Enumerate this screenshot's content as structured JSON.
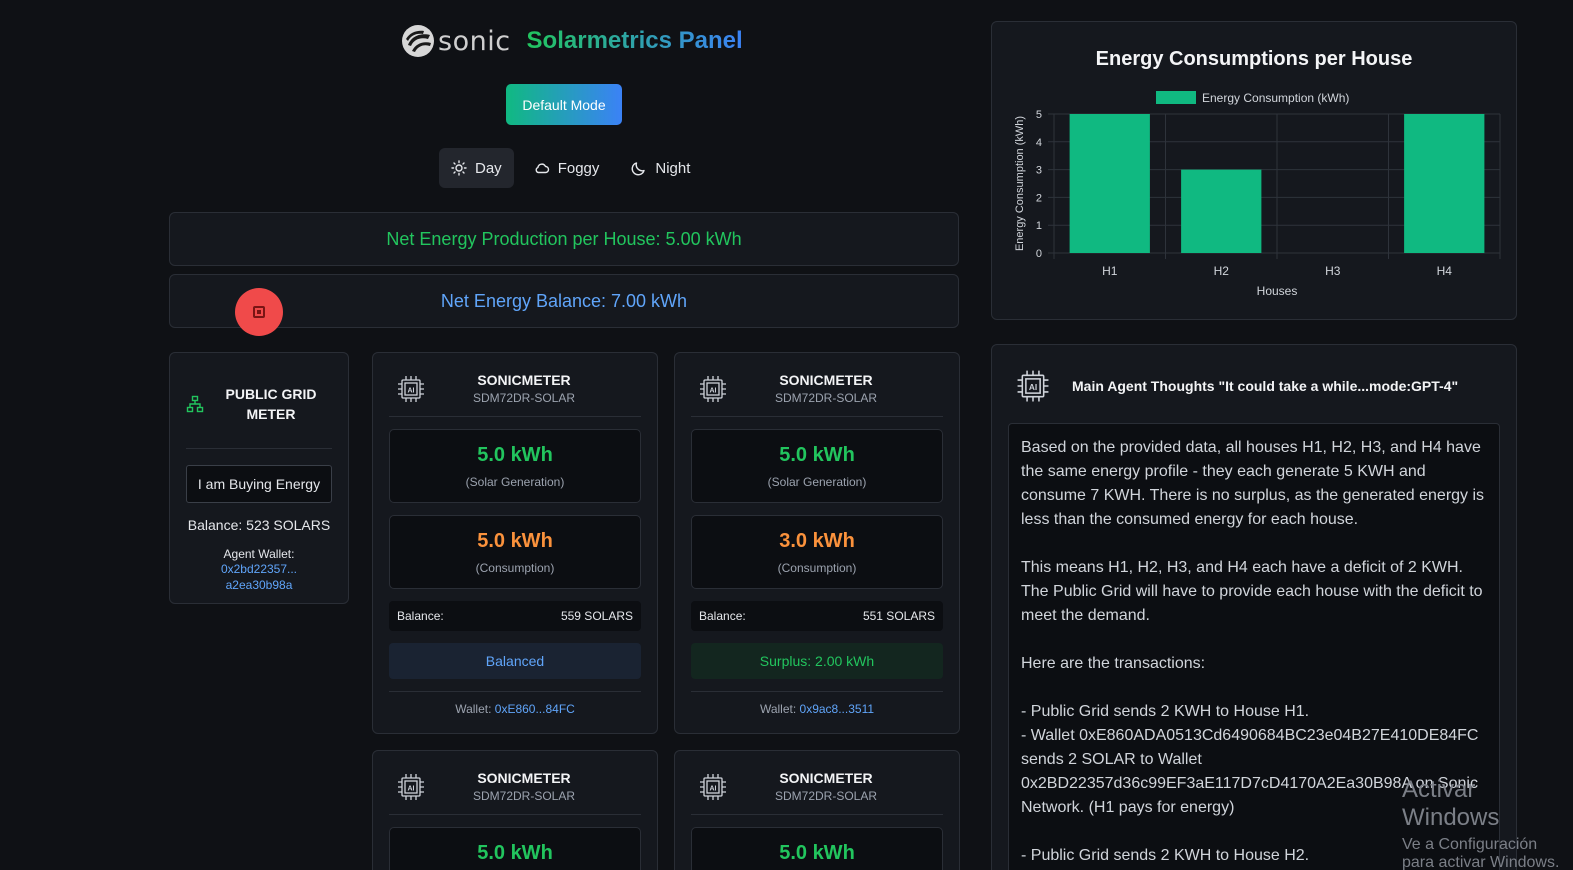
{
  "header": {
    "logo_text": "sonic",
    "title": "Solarmetrics Panel"
  },
  "mode_button": "Default Mode",
  "weather": [
    {
      "label": "Day",
      "icon": "sun-icon",
      "active": true
    },
    {
      "label": "Foggy",
      "icon": "cloud-icon",
      "active": false
    },
    {
      "label": "Night",
      "icon": "moon-icon",
      "active": false
    }
  ],
  "banners": {
    "production": "Net Energy Production per House: 5.00 kWh",
    "balance": "Net Energy Balance: 7.00 kWh"
  },
  "public_grid": {
    "title": "PUBLIC GRID METER",
    "status": "I am Buying Energy",
    "balance": "Balance: 523 SOLARS",
    "wallet_label": "Agent Wallet:",
    "wallet_line1": "0x2bd22357...",
    "wallet_line2": "a2ea30b98a"
  },
  "meters": [
    {
      "name": "SONICMETER",
      "model": "SDM72DR-SOLAR",
      "generation": "5.0 kWh",
      "generation_label": "(Solar Generation)",
      "consumption": "5.0 kWh",
      "consumption_label": "(Consumption)",
      "balance_label": "Balance:",
      "balance": "559 SOLARS",
      "state": "Balanced",
      "wallet_label": "Wallet:",
      "wallet": "0xE860...84FC"
    },
    {
      "name": "SONICMETER",
      "model": "SDM72DR-SOLAR",
      "generation": "5.0 kWh",
      "generation_label": "(Solar Generation)",
      "consumption": "3.0 kWh",
      "consumption_label": "(Consumption)",
      "balance_label": "Balance:",
      "balance": "551 SOLARS",
      "state": "Surplus: 2.00 kWh",
      "wallet_label": "Wallet:",
      "wallet": "0x9ac8...3511"
    },
    {
      "name": "SONICMETER",
      "model": "SDM72DR-SOLAR",
      "generation": "5.0 kWh"
    },
    {
      "name": "SONICMETER",
      "model": "SDM72DR-SOLAR",
      "generation": "5.0 kWh"
    }
  ],
  "chart_data": {
    "type": "bar",
    "title": "Energy Consumptions per House",
    "categories": [
      "H1",
      "H2",
      "H3",
      "H4"
    ],
    "series": [
      {
        "name": "Energy Consumption (kWh)",
        "values": [
          5,
          3,
          0,
          5
        ],
        "color": "#10b981"
      }
    ],
    "xlabel": "Houses",
    "ylabel": "Energy Consumption (kWh)",
    "ylim": [
      0,
      5
    ],
    "yticks": [
      0,
      1,
      2,
      3,
      4,
      5
    ],
    "grid": true,
    "legend": "top"
  },
  "thoughts": {
    "title": "Main Agent Thoughts \"It could take a while...mode:GPT-4\"",
    "p1": "Based on the provided data, all houses H1, H2, H3, and H4 have the same energy profile - they each generate 5 KWH and consume 7 KWH. There is no surplus, as the generated energy is less than the consumed energy for each house.",
    "p2": "This means H1, H2, H3, and H4 each have a deficit of 2 KWH. The Public Grid will have to provide each house with the deficit to meet the demand.",
    "p3": "Here are the transactions:",
    "t1": "- Public Grid sends 2 KWH to House H1.",
    "t2": "- Wallet 0xE860ADA0513Cd6490684BC23e04B27E410DE84FC sends 2 SOLAR to Wallet 0x2BD22357d36c99EF3aE117D7cD4170A2Ea30B98A on Sonic Network. (H1 pays for energy)",
    "t3": "- Public Grid sends 2 KWH to House H2."
  },
  "watermark": {
    "line1": "Activar Windows",
    "line2": "Ve a Configuración para activar Windows."
  }
}
